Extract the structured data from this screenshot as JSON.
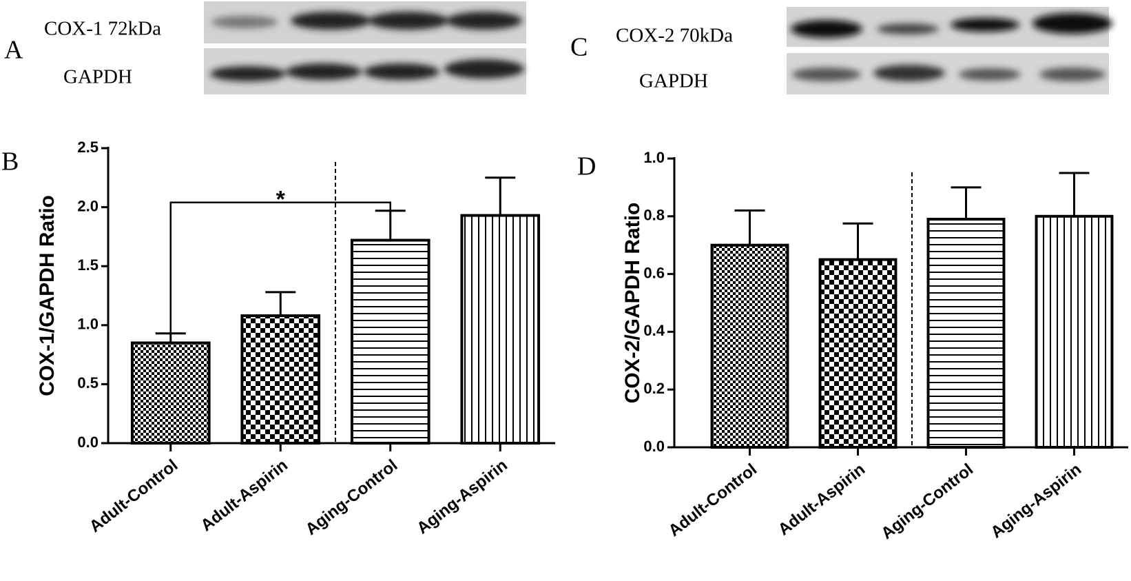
{
  "blots": [
    {
      "panel_label": "A",
      "labels": [
        "COX-1 72kDa",
        "GAPDH"
      ]
    },
    {
      "panel_label": "C",
      "labels": [
        "COX-2 70kDa",
        "GAPDH"
      ]
    }
  ],
  "chart_data": [
    {
      "type": "bar",
      "panel_label": "B",
      "y_label": "COX-1/GAPDH Ratio",
      "categories": [
        "Adult-Control",
        "Adult-Aspirin",
        "Aging-Control",
        "Aging-Aspirin"
      ],
      "values": [
        0.85,
        1.08,
        1.72,
        1.93
      ],
      "errors": [
        0.08,
        0.2,
        0.25,
        0.32
      ],
      "patterns": [
        "fine-check",
        "check",
        "horizontal",
        "vertical"
      ],
      "color": "#000000",
      "divider_after_index": 1,
      "significance": [
        {
          "from": "Adult-Control",
          "to": "Aging-Control",
          "label": "*"
        }
      ],
      "ylim": [
        0,
        2.5
      ],
      "yticks": [
        {
          "value": 0,
          "label": "0.0"
        },
        {
          "value": 0.5,
          "label": "0.5"
        },
        {
          "value": 1,
          "label": "1.0"
        },
        {
          "value": 1.5,
          "label": "1.5"
        },
        {
          "value": 2,
          "label": "2.0"
        },
        {
          "value": 2.5,
          "label": "2.5"
        }
      ]
    },
    {
      "type": "bar",
      "panel_label": "D",
      "y_label": "COX-2/GAPDH Ratio",
      "categories": [
        "Adult-Control",
        "Adult-Aspirin",
        "Aging-Control",
        "Aging-Aspirin"
      ],
      "values": [
        0.7,
        0.65,
        0.79,
        0.8
      ],
      "errors": [
        0.12,
        0.125,
        0.11,
        0.15
      ],
      "patterns": [
        "fine-check",
        "check",
        "horizontal",
        "vertical"
      ],
      "color": "#000000",
      "divider_after_index": 1,
      "significance": [],
      "ylim": [
        0,
        1
      ],
      "yticks": [
        {
          "value": 0,
          "label": "0.0"
        },
        {
          "value": 0.2,
          "label": "0.2"
        },
        {
          "value": 0.4,
          "label": "0.4"
        },
        {
          "value": 0.6,
          "label": "0.6"
        },
        {
          "value": 0.8,
          "label": "0.8"
        },
        {
          "value": 1,
          "label": "1.0"
        }
      ]
    }
  ]
}
